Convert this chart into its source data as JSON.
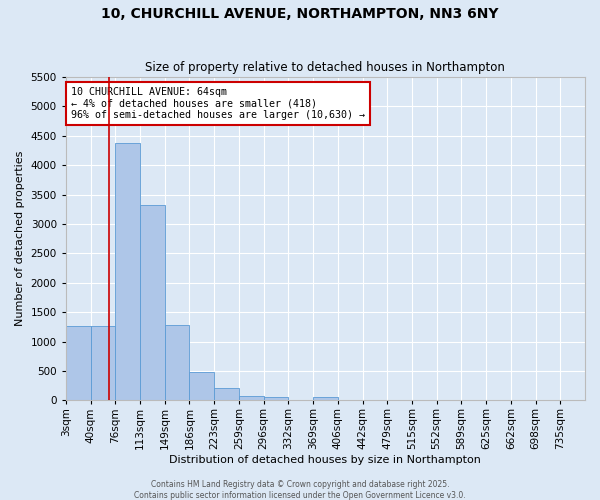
{
  "title_line1": "10, CHURCHILL AVENUE, NORTHAMPTON, NN3 6NY",
  "title_line2": "Size of property relative to detached houses in Northampton",
  "xlabel": "Distribution of detached houses by size in Northampton",
  "ylabel": "Number of detached properties",
  "bin_labels": [
    "3sqm",
    "40sqm",
    "76sqm",
    "113sqm",
    "149sqm",
    "186sqm",
    "223sqm",
    "259sqm",
    "296sqm",
    "332sqm",
    "369sqm",
    "406sqm",
    "442sqm",
    "479sqm",
    "515sqm",
    "552sqm",
    "589sqm",
    "625sqm",
    "662sqm",
    "698sqm",
    "735sqm"
  ],
  "bin_values": [
    1270,
    1270,
    4380,
    3320,
    1285,
    490,
    215,
    80,
    50,
    0,
    50,
    0,
    0,
    0,
    0,
    0,
    0,
    0,
    0,
    0,
    0
  ],
  "bar_color": "#aec6e8",
  "bar_edge_color": "#5b9bd5",
  "bg_color": "#dce8f5",
  "grid_color": "#ffffff",
  "vline_x": 1.73,
  "vline_color": "#cc0000",
  "annotation_text": "10 CHURCHILL AVENUE: 64sqm\n← 4% of detached houses are smaller (418)\n96% of semi-detached houses are larger (10,630) →",
  "annotation_box_color": "#ffffff",
  "annotation_box_edge": "#cc0000",
  "ylim": [
    0,
    5500
  ],
  "yticks": [
    0,
    500,
    1000,
    1500,
    2000,
    2500,
    3000,
    3500,
    4000,
    4500,
    5000,
    5500
  ],
  "footer_line1": "Contains HM Land Registry data © Crown copyright and database right 2025.",
  "footer_line2": "Contains public sector information licensed under the Open Government Licence v3.0."
}
